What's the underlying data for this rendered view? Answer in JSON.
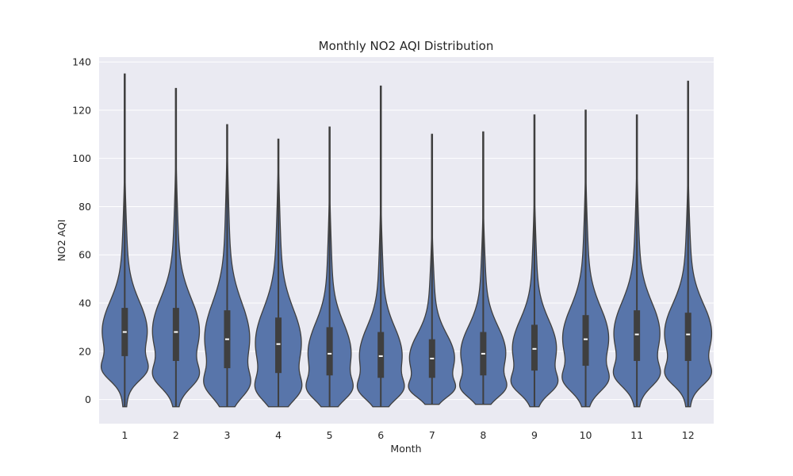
{
  "chart_data": {
    "type": "violin",
    "title": "Monthly NO2 AQI Distribution",
    "xlabel": "Month",
    "ylabel": "NO2 AQI",
    "ylim": [
      -10,
      142
    ],
    "yticks": [
      0,
      20,
      40,
      60,
      80,
      100,
      120,
      140
    ],
    "grid": true,
    "colors": {
      "violin": "#5875aa",
      "outline": "#3f3f3f",
      "box": "#3f3f3f",
      "median": "#ffffff",
      "background": "#eaeaf2",
      "grid": "#ffffff"
    },
    "categories": [
      "1",
      "2",
      "3",
      "4",
      "5",
      "6",
      "7",
      "8",
      "9",
      "10",
      "11",
      "12"
    ],
    "series": [
      {
        "category": "1",
        "min": -3,
        "q1": 18,
        "median": 28,
        "q3": 38,
        "max": 135
      },
      {
        "category": "2",
        "min": -3,
        "q1": 16,
        "median": 28,
        "q3": 38,
        "max": 129
      },
      {
        "category": "3",
        "min": -3,
        "q1": 13,
        "median": 25,
        "q3": 37,
        "max": 114
      },
      {
        "category": "4",
        "min": -3,
        "q1": 11,
        "median": 23,
        "q3": 34,
        "max": 108
      },
      {
        "category": "5",
        "min": -3,
        "q1": 10,
        "median": 19,
        "q3": 30,
        "max": 113
      },
      {
        "category": "6",
        "min": -3,
        "q1": 9,
        "median": 18,
        "q3": 28,
        "max": 130
      },
      {
        "category": "7",
        "min": -2,
        "q1": 9,
        "median": 17,
        "q3": 25,
        "max": 110
      },
      {
        "category": "8",
        "min": -2,
        "q1": 10,
        "median": 19,
        "q3": 28,
        "max": 111
      },
      {
        "category": "9",
        "min": -3,
        "q1": 12,
        "median": 21,
        "q3": 31,
        "max": 118
      },
      {
        "category": "10",
        "min": -3,
        "q1": 14,
        "median": 25,
        "q3": 35,
        "max": 120
      },
      {
        "category": "11",
        "min": -3,
        "q1": 16,
        "median": 27,
        "q3": 37,
        "max": 118
      },
      {
        "category": "12",
        "min": -3,
        "q1": 16,
        "median": 27,
        "q3": 36,
        "max": 132
      }
    ]
  }
}
